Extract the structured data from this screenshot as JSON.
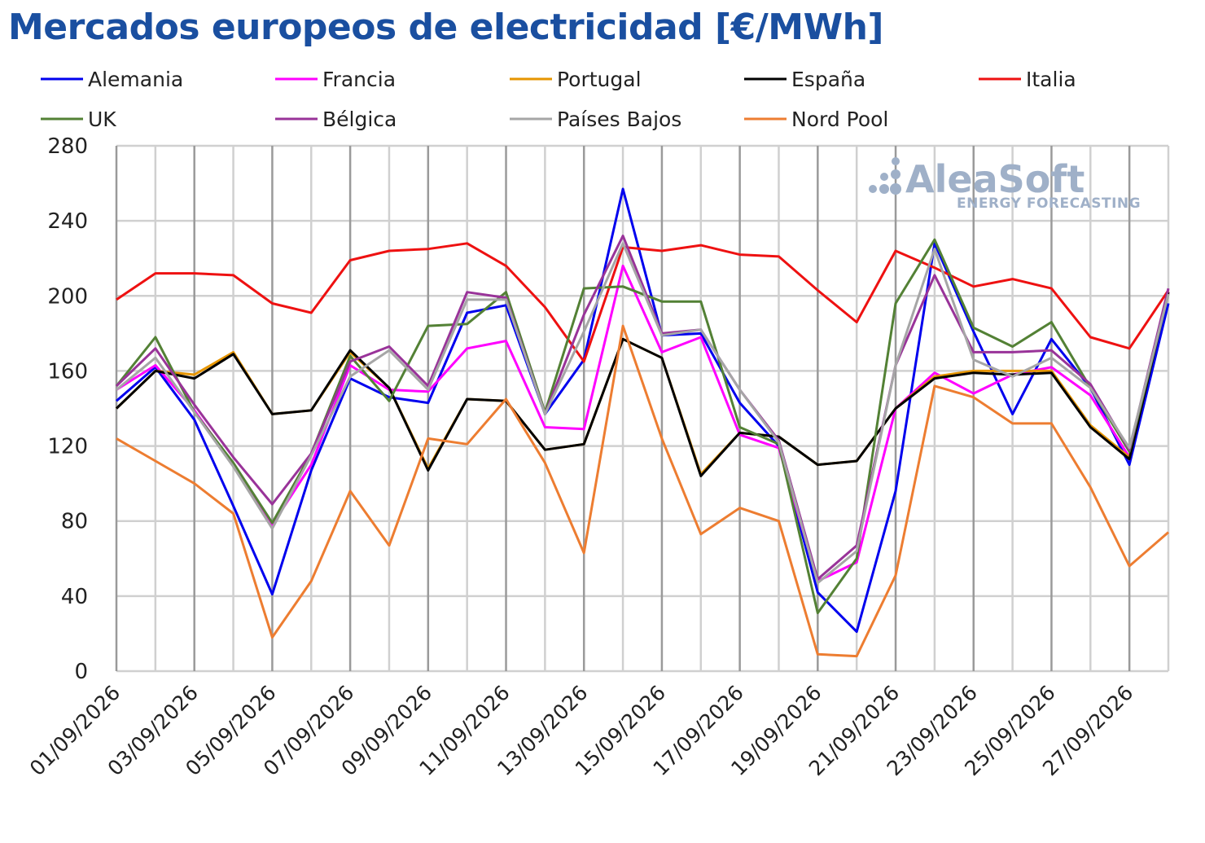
{
  "chart_data": {
    "type": "line",
    "title": "Mercados europeos de electricidad [€/MWh]",
    "xlabel": "",
    "ylabel": "",
    "ylim": [
      0,
      280
    ],
    "yticks": [
      0,
      40,
      80,
      120,
      160,
      200,
      240,
      280
    ],
    "grid": true,
    "legend_position": "top",
    "x": [
      "01/09/2026",
      "02/09/2026",
      "03/09/2026",
      "04/09/2026",
      "05/09/2026",
      "06/09/2026",
      "07/09/2026",
      "08/09/2026",
      "09/09/2026",
      "10/09/2026",
      "11/09/2026",
      "12/09/2026",
      "13/09/2026",
      "14/09/2026",
      "15/09/2026",
      "16/09/2026",
      "17/09/2026",
      "18/09/2026",
      "19/09/2026",
      "20/09/2026",
      "21/09/2026",
      "22/09/2026",
      "23/09/2026",
      "24/09/2026",
      "25/09/2026",
      "26/09/2026",
      "27/09/2026",
      "28/09/2026"
    ],
    "x_tick_labels": [
      "01/09/2026",
      "03/09/2026",
      "05/09/2026",
      "07/09/2026",
      "09/09/2026",
      "11/09/2026",
      "13/09/2026",
      "15/09/2026",
      "17/09/2026",
      "19/09/2026",
      "21/09/2026",
      "23/09/2026",
      "25/09/2026",
      "27/09/2026"
    ],
    "series": [
      {
        "name": "Alemania",
        "color": "#0000ee",
        "values": [
          144,
          162,
          134,
          88,
          41,
          107,
          156,
          146,
          143,
          191,
          195,
          137,
          166,
          257,
          179,
          180,
          143,
          120,
          42,
          21,
          96,
          228,
          181,
          137,
          177,
          151,
          110,
          196
        ]
      },
      {
        "name": "Francia",
        "color": "#ff00ff",
        "values": [
          150,
          163,
          139,
          110,
          78,
          110,
          163,
          150,
          149,
          172,
          176,
          130,
          129,
          216,
          170,
          178,
          126,
          119,
          48,
          58,
          140,
          159,
          148,
          158,
          162,
          147,
          114,
          202
        ]
      },
      {
        "name": "Portugal",
        "color": "#e69500",
        "values": [
          140,
          160,
          158,
          170,
          137,
          139,
          170,
          151,
          108,
          145,
          144,
          118,
          121,
          177,
          167,
          105,
          127,
          125,
          110,
          112,
          140,
          157,
          160,
          160,
          160,
          131,
          114,
          202
        ]
      },
      {
        "name": "España",
        "color": "#000000",
        "values": [
          140,
          160,
          156,
          169,
          137,
          139,
          171,
          151,
          107,
          145,
          144,
          118,
          121,
          177,
          167,
          104,
          127,
          125,
          110,
          112,
          140,
          156,
          159,
          158,
          159,
          130,
          113,
          202
        ]
      },
      {
        "name": "Italia",
        "color": "#ee1111",
        "values": [
          198,
          212,
          212,
          211,
          196,
          191,
          219,
          224,
          225,
          228,
          216,
          194,
          165,
          226,
          224,
          227,
          222,
          221,
          203,
          186,
          224,
          215,
          205,
          209,
          204,
          178,
          172,
          203
        ]
      },
      {
        "name": "UK",
        "color": "#538135",
        "values": [
          152,
          178,
          138,
          111,
          79,
          116,
          168,
          144,
          184,
          185,
          202,
          138,
          204,
          205,
          197,
          197,
          130,
          121,
          31,
          60,
          196,
          230,
          183,
          173,
          186,
          151,
          117,
          201
        ]
      },
      {
        "name": "Bélgica",
        "color": "#993399",
        "values": [
          152,
          172,
          142,
          114,
          89,
          116,
          165,
          173,
          152,
          202,
          199,
          137,
          190,
          232,
          180,
          182,
          150,
          123,
          49,
          67,
          163,
          211,
          170,
          170,
          171,
          153,
          118,
          204
        ]
      },
      {
        "name": "Países Bajos",
        "color": "#a6a6a6",
        "values": [
          150,
          167,
          138,
          109,
          76,
          115,
          157,
          171,
          150,
          198,
          198,
          137,
          181,
          228,
          179,
          182,
          150,
          122,
          47,
          64,
          163,
          225,
          166,
          157,
          167,
          151,
          119,
          201
        ]
      },
      {
        "name": "Nord Pool",
        "color": "#ed7d31",
        "values": [
          124,
          112,
          100,
          84,
          18,
          48,
          96,
          67,
          124,
          121,
          145,
          111,
          63,
          184,
          124,
          73,
          87,
          80,
          9,
          8,
          51,
          152,
          146,
          132,
          132,
          98,
          56,
          74
        ]
      }
    ],
    "watermark": {
      "main": "AleaSoft",
      "sub": "ENERGY FORECASTING"
    }
  }
}
